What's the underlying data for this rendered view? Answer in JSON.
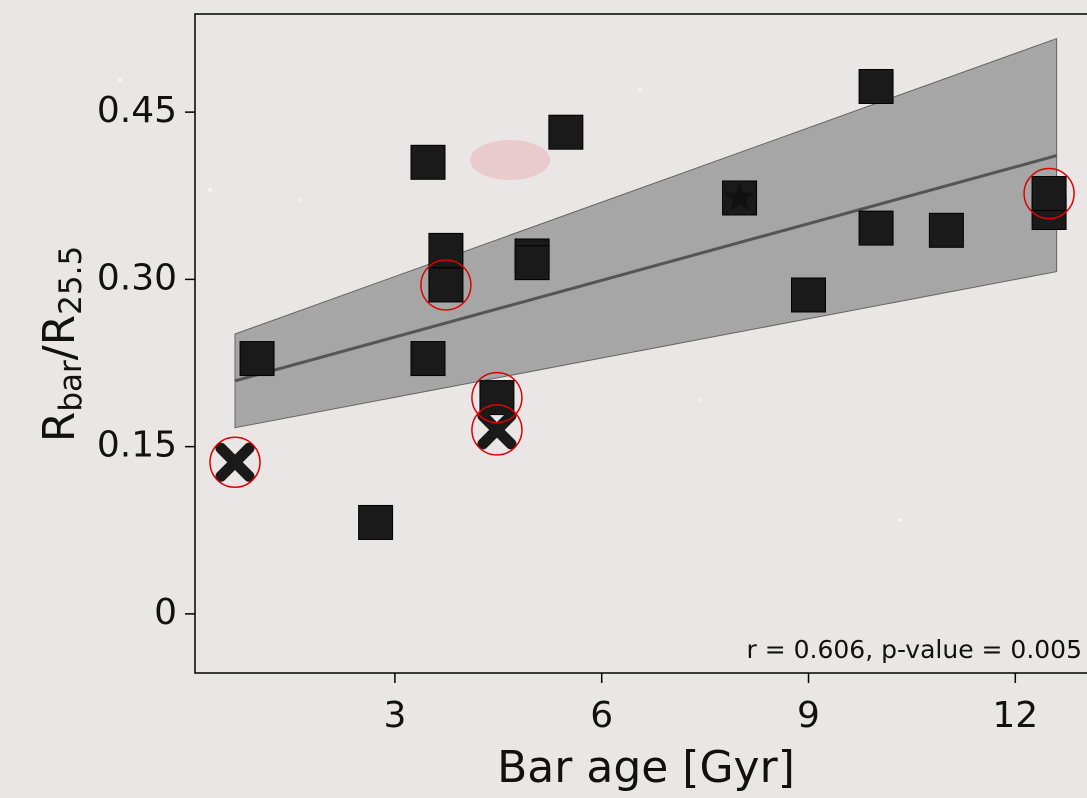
{
  "chart_data": {
    "type": "scatter",
    "xlabel": "Bar age [Gyr]",
    "ylabel": [
      "R",
      "bar",
      "/R",
      "25.5"
    ],
    "annotation": "r = 0.606, p-value = 0.005",
    "xlim": [
      0.1,
      13.04
    ],
    "ylim": [
      -0.053,
      0.538
    ],
    "xticks": [
      3,
      6,
      9,
      12
    ],
    "yticks": [
      0,
      0.15,
      {
        "value": 0.3,
        "label": "0.30"
      },
      0.45
    ],
    "series": [
      {
        "marker": "square",
        "color": "#1a1a1a",
        "x": [
          1.0,
          2.72,
          3.48,
          3.48,
          3.74,
          3.74,
          4.48,
          4.99,
          4.99,
          5.48,
          8.0,
          9.0,
          9.98,
          9.98,
          11.0,
          12.49,
          12.49
        ],
        "values": [
          0.229,
          0.082,
          0.405,
          0.229,
          0.326,
          0.295,
          0.194,
          0.321,
          0.315,
          0.432,
          0.373,
          0.286,
          0.473,
          0.346,
          0.344,
          0.36,
          0.377
        ]
      },
      {
        "marker": "cross",
        "color": "#1a1a1a",
        "x": [
          0.68,
          4.48
        ],
        "values": [
          0.136,
          0.165
        ]
      },
      {
        "marker": "star",
        "color": "#111111",
        "x": [
          8.0
        ],
        "values": [
          0.373
        ]
      },
      {
        "marker": "ring",
        "color": "#e00000",
        "x": [
          0.68,
          3.74,
          4.48,
          4.48,
          12.49
        ],
        "values": [
          0.136,
          0.295,
          0.194,
          0.165,
          0.377
        ]
      }
    ],
    "fit": {
      "color": "#555555",
      "band_color": "#8a8a8a",
      "x": [
        0.68,
        12.6
      ],
      "values": [
        0.209,
        0.411
      ],
      "lower": [
        0.167,
        0.307
      ],
      "upper": [
        0.251,
        0.516
      ]
    }
  }
}
